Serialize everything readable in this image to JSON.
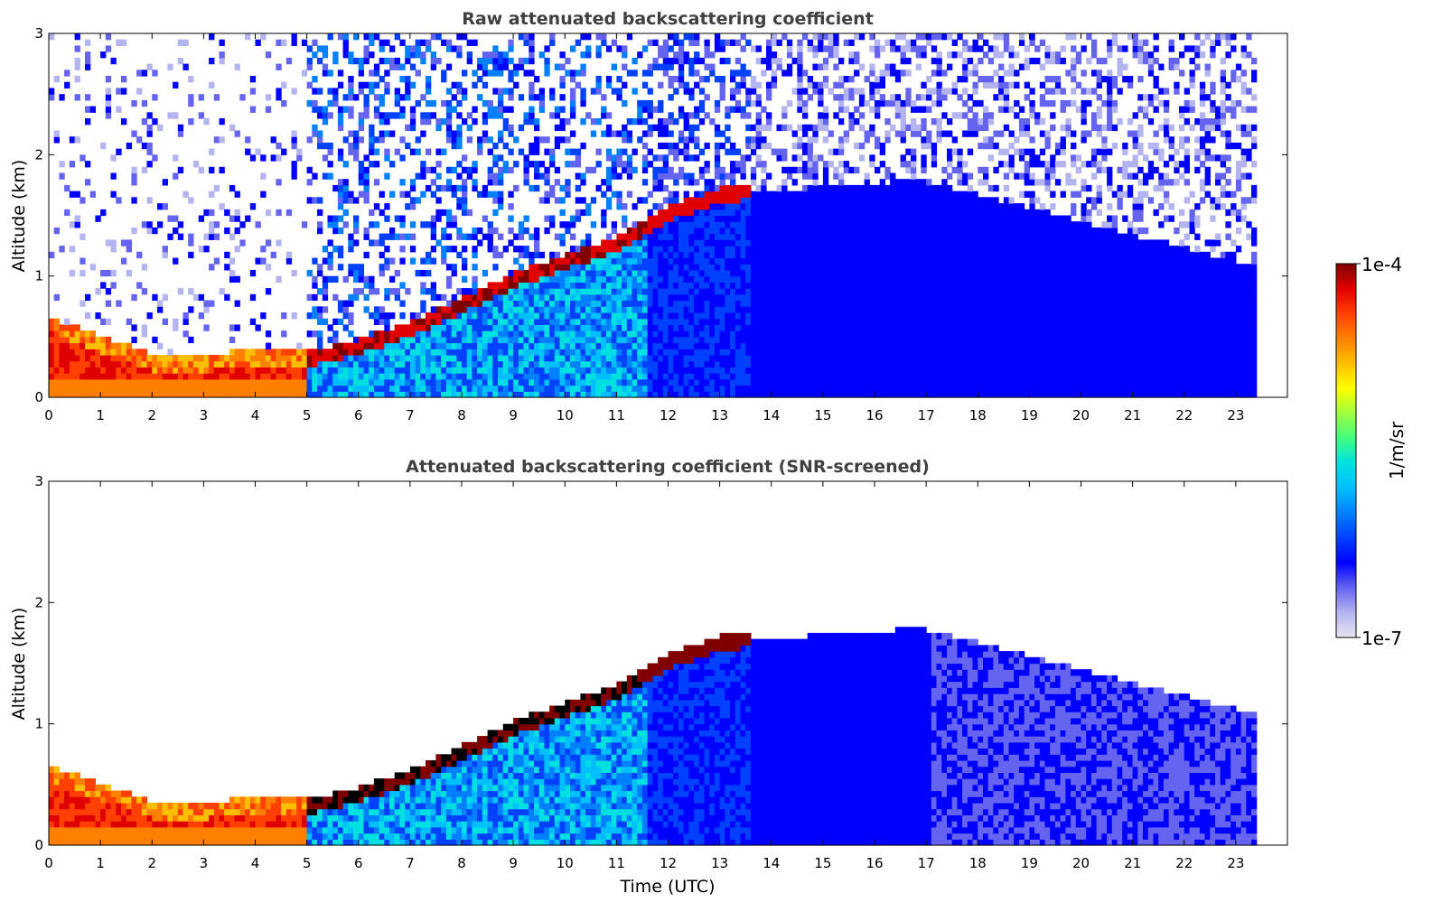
{
  "chart_data": [
    {
      "type": "heatmap",
      "title": "Raw attenuated backscattering coefficient",
      "xlabel": "",
      "ylabel": "Altitude (km)",
      "xlim": [
        0,
        24
      ],
      "ylim": [
        0,
        3
      ],
      "x_ticks": [
        "0",
        "1",
        "2",
        "3",
        "4",
        "5",
        "6",
        "7",
        "8",
        "9",
        "10",
        "11",
        "12",
        "13",
        "14",
        "15",
        "16",
        "17",
        "18",
        "19",
        "20",
        "21",
        "22",
        "23"
      ],
      "y_ticks": [
        "0",
        "1",
        "2",
        "3"
      ],
      "data_time_range_utc": [
        0,
        23.4
      ],
      "boundary_layer_top_km": {
        "time_utc": [
          0,
          1,
          2,
          3,
          4,
          5,
          6,
          7,
          8,
          9,
          10,
          11,
          12,
          13
        ],
        "altitude_km": [
          0.55,
          0.4,
          0.25,
          0.25,
          0.3,
          0.3,
          0.4,
          0.55,
          0.75,
          0.95,
          1.1,
          1.25,
          1.5,
          1.65
        ]
      },
      "screened": false
    },
    {
      "type": "heatmap",
      "title": "Attenuated backscattering coefficient (SNR-screened)",
      "xlabel": "Time (UTC)",
      "ylabel": "Altitude (km)",
      "xlim": [
        0,
        24
      ],
      "ylim": [
        0,
        3
      ],
      "x_ticks": [
        "0",
        "1",
        "2",
        "3",
        "4",
        "5",
        "6",
        "7",
        "8",
        "9",
        "10",
        "11",
        "12",
        "13",
        "14",
        "15",
        "16",
        "17",
        "18",
        "19",
        "20",
        "21",
        "22",
        "23"
      ],
      "y_ticks": [
        "0",
        "1",
        "2",
        "3"
      ],
      "data_time_range_utc": [
        0,
        23.4
      ],
      "screened": true
    }
  ],
  "colorbar": {
    "label": "1/m/sr",
    "max_label": "1e-4",
    "min_label": "1e-7",
    "scale": "log",
    "range": [
      1e-07,
      0.0001
    ],
    "colormap": [
      "#e6e6f2",
      "#b4b4f0",
      "#6464f0",
      "#0000ff",
      "#0040ff",
      "#0080ff",
      "#00bfff",
      "#00e0e0",
      "#40ff80",
      "#a0ff40",
      "#ffff00",
      "#ffbf00",
      "#ff8000",
      "#ff4000",
      "#e00000",
      "#800000"
    ]
  }
}
